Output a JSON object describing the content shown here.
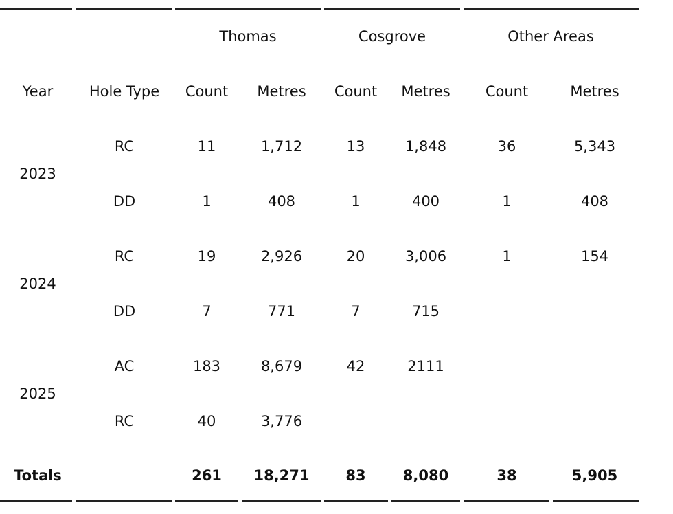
{
  "table": {
    "groups": [
      "Thomas",
      "Cosgrove",
      "Other Areas"
    ],
    "columns": [
      "Year",
      "Hole Type",
      "Count",
      "Metres",
      "Count",
      "Metres",
      "Count",
      "Metres"
    ],
    "years": [
      {
        "year": "2023",
        "rows": [
          [
            "RC",
            "11",
            "1,712",
            "13",
            "1,848",
            "36",
            "5,343"
          ],
          [
            "DD",
            "1",
            "408",
            "1",
            "400",
            "1",
            "408"
          ]
        ]
      },
      {
        "year": "2024",
        "rows": [
          [
            "RC",
            "19",
            "2,926",
            "20",
            "3,006",
            "1",
            "154"
          ],
          [
            "DD",
            "7",
            "771",
            "7",
            "715",
            null,
            null
          ]
        ]
      },
      {
        "year": "2025",
        "rows": [
          [
            "AC",
            "183",
            "8,679",
            "42",
            "2111",
            null,
            null
          ],
          [
            "RC",
            "40",
            "3,776",
            null,
            null,
            null,
            null
          ]
        ]
      }
    ],
    "totals": {
      "label": "Totals",
      "values": [
        "261",
        "18,271",
        "83",
        "8,080",
        "38",
        "5,905"
      ]
    }
  }
}
